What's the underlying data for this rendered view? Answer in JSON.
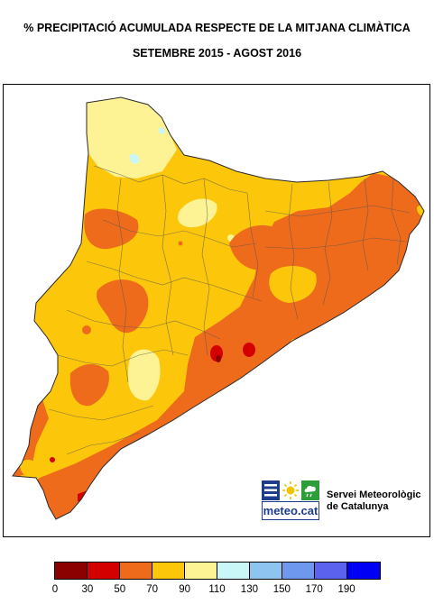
{
  "title": {
    "line1": "% PRECIPITACIÓ ACUMULADA RESPECTE DE LA MITJANA CLIMÀTICA",
    "line2": "SETEMBRE 2015 - AGOST 2016"
  },
  "logo": {
    "wordmark": "meteo.cat",
    "organization_line1": "Servei Meteorològic",
    "organization_line2": "de Catalunya",
    "colors": {
      "navy": "#1d3c8c",
      "sun": "#f2c300",
      "leaf": "#2e9e3a"
    },
    "icons": [
      "waves-icon",
      "sun-icon",
      "cloud-rain-icon"
    ]
  },
  "legend": {
    "classes": [
      {
        "from": 0,
        "to": 30,
        "color": "#8b0000"
      },
      {
        "from": 30,
        "to": 50,
        "color": "#d40000"
      },
      {
        "from": 50,
        "to": 70,
        "color": "#ee6b1c"
      },
      {
        "from": 70,
        "to": 90,
        "color": "#fcc70a"
      },
      {
        "from": 90,
        "to": 110,
        "color": "#fdf294"
      },
      {
        "from": 110,
        "to": 130,
        "color": "#c9f6f7"
      },
      {
        "from": 130,
        "to": 150,
        "color": "#8ec4f0"
      },
      {
        "from": 150,
        "to": 170,
        "color": "#6d98ee"
      },
      {
        "from": 170,
        "to": 190,
        "color": "#5b63ee"
      },
      {
        "from": 190,
        "to": null,
        "color": "#0000f5"
      }
    ],
    "tick_labels": [
      "0",
      "30",
      "50",
      "70",
      "90",
      "110",
      "130",
      "150",
      "170",
      "190"
    ]
  },
  "map": {
    "region": "Catalunya",
    "background_class_color": "#fcc70a",
    "zones": [
      {
        "name": "central-depression-yellow",
        "range": "70-90"
      },
      {
        "name": "northern-pyrenees-light",
        "range": "90-110"
      },
      {
        "name": "coastal-orange",
        "range": "50-70"
      },
      {
        "name": "ebre-delta-orange",
        "range": "50-70"
      },
      {
        "name": "local-red-spots",
        "range": "30-50"
      },
      {
        "name": "local-dark-red-spots",
        "range": "0-30"
      }
    ]
  }
}
